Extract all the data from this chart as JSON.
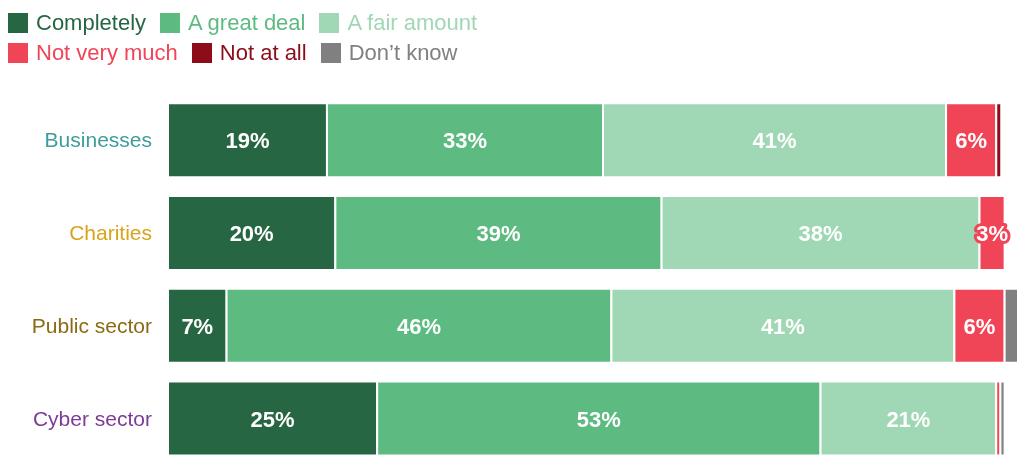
{
  "chart_data": {
    "type": "bar",
    "orientation": "horizontal",
    "stacked": true,
    "legend": "top left",
    "categories": [
      "Businesses",
      "Charities",
      "Public sector",
      "Cyber sector"
    ],
    "series": [
      {
        "name": "Completely",
        "color": "#276642",
        "values": [
          19,
          20,
          7,
          25
        ],
        "value_labels": [
          "19%",
          "20%",
          "7%",
          "25%"
        ]
      },
      {
        "name": "A great deal",
        "color": "#5dbb82",
        "values": [
          33,
          39,
          46,
          53
        ],
        "value_labels": [
          "33%",
          "39%",
          "46%",
          "53%"
        ]
      },
      {
        "name": "A fair amount",
        "color": "#a0d7b4",
        "values": [
          41,
          38,
          41,
          21
        ],
        "value_labels": [
          "41%",
          "38%",
          "41%",
          "21%"
        ]
      },
      {
        "name": "Not very much",
        "color": "#f04457",
        "values": [
          6,
          3,
          6,
          0.5
        ],
        "value_labels": [
          "6%",
          "3%",
          "6%",
          null
        ]
      },
      {
        "name": "Not at all",
        "color": "#8e0c1a",
        "values": [
          0.6,
          0,
          0,
          0
        ],
        "value_labels": [
          null,
          null,
          null,
          null
        ]
      },
      {
        "name": "Don’t know",
        "color": "#808080",
        "values": [
          0,
          0,
          1.6,
          0.5
        ],
        "value_labels": [
          null,
          null,
          null,
          null
        ]
      }
    ]
  }
}
